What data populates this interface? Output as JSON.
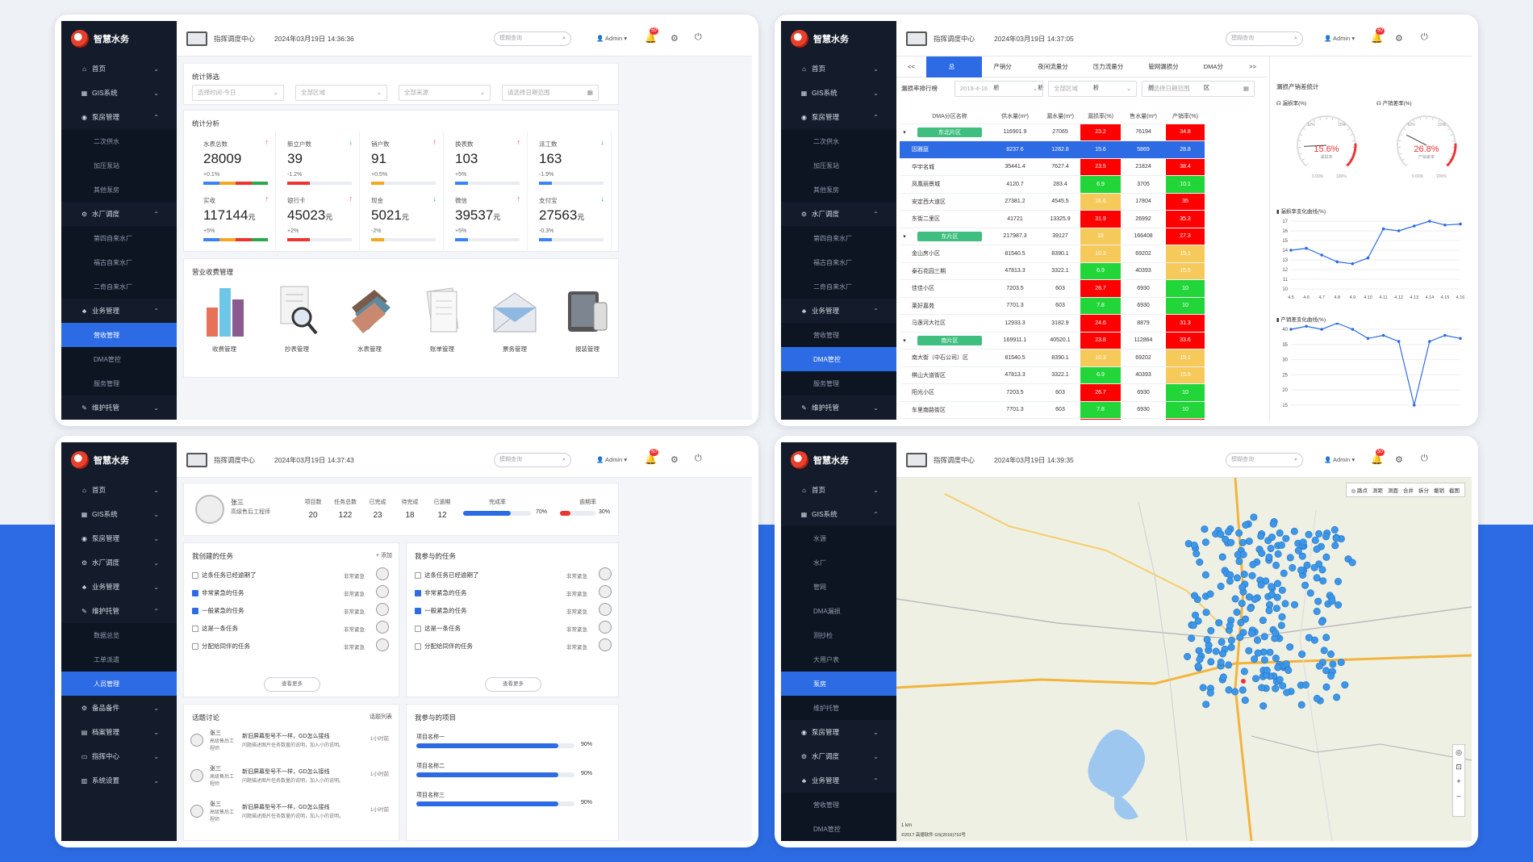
{
  "app": {
    "name": "智慧水务",
    "center": "指挥调度中心",
    "search_placeholder": "模糊查询",
    "user": "Admin",
    "badge": "50"
  },
  "p1": {
    "time": "2024年03月19日 14:36:36",
    "menu": [
      {
        "label": "首页",
        "icon": "home-icon",
        "open": false
      },
      {
        "label": "GIS系统",
        "icon": "grid-icon",
        "open": false
      },
      {
        "label": "泵房管理",
        "icon": "pump-icon",
        "open": true,
        "subs": [
          "二次供水",
          "加压泵站",
          "其他泵房"
        ]
      },
      {
        "label": "水厂调度",
        "icon": "gear-icon",
        "open": true,
        "subs": [
          "第四自来水厂",
          "福古自来水厂",
          "二奇自来水厂"
        ]
      },
      {
        "label": "业务管理",
        "icon": "sitemap-icon",
        "open": true,
        "subs": [
          "营收管理",
          "DMA管控",
          "服务管理"
        ],
        "active": "营收管理"
      },
      {
        "label": "维护托管",
        "icon": "edit-icon",
        "open": false
      }
    ],
    "filter_title": "统计筛选",
    "filters": [
      "选择时间-今日",
      "全部区域",
      "全部来源",
      "请选择日期范围"
    ],
    "analysis_title": "统计分析",
    "stats": [
      {
        "label": "水表总数",
        "value": "28009",
        "unit": "",
        "pct": "+0.1%",
        "dir": "up",
        "fill": 0.75
      },
      {
        "label": "新立户数",
        "value": "39",
        "unit": "",
        "pct": "-1.2%",
        "dir": "dn",
        "fill": 0.35
      },
      {
        "label": "销户数",
        "value": "91",
        "unit": "",
        "pct": "+0.5%",
        "dir": "up",
        "fill": 0.2
      },
      {
        "label": "换表数",
        "value": "103",
        "unit": "",
        "pct": "+5%",
        "dir": "up",
        "fill": 0.2
      },
      {
        "label": "派工数",
        "value": "163",
        "unit": "",
        "pct": "-1.9%",
        "dir": "dn",
        "fill": 0.2
      },
      {
        "label": "实收",
        "value": "117144",
        "unit": "元",
        "pct": "+5%",
        "dir": "up",
        "fill": 0.75
      },
      {
        "label": "银行卡",
        "value": "45023",
        "unit": "元",
        "pct": "+2%",
        "dir": "up",
        "fill": 0.35
      },
      {
        "label": "现金",
        "value": "5021",
        "unit": "元",
        "pct": "-2%",
        "dir": "dn",
        "fill": 0.2
      },
      {
        "label": "微信",
        "value": "39537",
        "unit": "元",
        "pct": "+5%",
        "dir": "up",
        "fill": 0.2
      },
      {
        "label": "支付宝",
        "value": "27563",
        "unit": "元",
        "pct": "-0.3%",
        "dir": "dn",
        "fill": 0.2
      }
    ],
    "revenue_title": "营业收费管理",
    "modules": [
      "收费管理",
      "抄表管理",
      "水表管理",
      "账单管理",
      "票务管理",
      "报装管理"
    ]
  },
  "p2": {
    "time": "2024年03月19日 14:37:05",
    "menu": [
      {
        "label": "首页",
        "icon": "home-icon"
      },
      {
        "label": "GIS系统",
        "icon": "grid-icon"
      },
      {
        "label": "泵房管理",
        "icon": "pump-icon",
        "subs": [
          "二次供水",
          "加压泵站",
          "其他泵房"
        ]
      },
      {
        "label": "水厂调度",
        "icon": "gear-icon",
        "subs": [
          "第四自来水厂",
          "福古自来水厂",
          "二奇自来水厂"
        ]
      },
      {
        "label": "业务管理",
        "icon": "sitemap-icon",
        "subs": [
          "营收管理",
          "DMA管控",
          "服务管理"
        ],
        "active": "DMA管控"
      },
      {
        "label": "维护托管",
        "icon": "edit-icon"
      }
    ],
    "tabs": [
      "<<",
      "总览",
      "产销分析",
      "夜间流量分析",
      "压力流量分析",
      "管网漏损分析",
      "DMA分区",
      ">>"
    ],
    "rank_label": "漏损率排行榜",
    "date": "2019-4-16",
    "area": "全部区域",
    "range": "请选择日期范围",
    "headers": [
      "DMA分区名称",
      "供水量(m³)",
      "漏水量(m³)",
      "漏损率(%)",
      "售水量(m³)",
      "产销率(%)"
    ],
    "rows": [
      {
        "g": true,
        "name": "东北片区",
        "a": "116901.9",
        "b": "27065",
        "c": "23.2",
        "cc": "r",
        "d": "76194",
        "e": "34.8",
        "ec": "r"
      },
      {
        "sel": true,
        "name": "因雅庭",
        "a": "8237.6",
        "b": "1282.8",
        "c": "15.6",
        "cc": "y",
        "d": "5869",
        "e": "28.8",
        "ec": "r"
      },
      {
        "name": "华宇名城",
        "a": "35441.4",
        "b": "7627.4",
        "c": "23.5",
        "cc": "r",
        "d": "21824",
        "e": "38.4",
        "ec": "r"
      },
      {
        "name": "凤凰丽景城",
        "a": "4120.7",
        "b": "283.4",
        "c": "6.9",
        "cc": "g",
        "d": "3705",
        "e": "10.1",
        "ec": "g"
      },
      {
        "name": "安定西大道区",
        "a": "27381.2",
        "b": "4545.5",
        "c": "16.6",
        "cc": "y",
        "d": "17804",
        "e": "35",
        "ec": "r"
      },
      {
        "name": "东街二里区",
        "a": "41721",
        "b": "13325.9",
        "c": "31.9",
        "cc": "r",
        "d": "26992",
        "e": "35.3",
        "ec": "r"
      },
      {
        "g": true,
        "name": "东片区",
        "a": "217987.3",
        "b": "39127",
        "c": "18",
        "cc": "y",
        "d": "166408",
        "e": "27.3",
        "ec": "r"
      },
      {
        "name": "金山房小区",
        "a": "81540.5",
        "b": "8390.1",
        "c": "10.3",
        "cc": "y",
        "d": "69202",
        "e": "15.1",
        "ec": "y"
      },
      {
        "name": "泰石花园三期",
        "a": "47813.3",
        "b": "3322.1",
        "c": "6.9",
        "cc": "g",
        "d": "40393",
        "e": "15.5",
        "ec": "y"
      },
      {
        "name": "佳佳小区",
        "a": "7203.5",
        "b": "603",
        "c": "26.7",
        "cc": "r",
        "d": "6930",
        "e": "10",
        "ec": "g"
      },
      {
        "name": "莱好嘉苑",
        "a": "7701.3",
        "b": "603",
        "c": "7.8",
        "cc": "g",
        "d": "6930",
        "e": "10",
        "ec": "g"
      },
      {
        "name": "马莲河大社区",
        "a": "12933.3",
        "b": "3182.9",
        "c": "24.6",
        "cc": "r",
        "d": "8879",
        "e": "31.3",
        "ec": "r"
      },
      {
        "g": true,
        "name": "南片区",
        "a": "169911.1",
        "b": "40520.1",
        "c": "23.8",
        "cc": "r",
        "d": "112864",
        "e": "33.6",
        "ec": "r"
      },
      {
        "name": "南大街（中石公司）区",
        "a": "81540.5",
        "b": "8390.1",
        "c": "10.3",
        "cc": "y",
        "d": "69202",
        "e": "15.1",
        "ec": "y"
      },
      {
        "name": "棋山大道街区",
        "a": "47813.3",
        "b": "3322.1",
        "c": "6.9",
        "cc": "g",
        "d": "40393",
        "e": "15.5",
        "ec": "y"
      },
      {
        "name": "阳光小区",
        "a": "7203.5",
        "b": "603",
        "c": "26.7",
        "cc": "r",
        "d": "6930",
        "e": "10",
        "ec": "g"
      },
      {
        "name": "车里南路街区",
        "a": "7701.3",
        "b": "603",
        "c": "7.8",
        "cc": "g",
        "d": "6930",
        "e": "10",
        "ec": "g"
      },
      {
        "name": "电视台家属区",
        "a": "12933.3",
        "b": "3182.9",
        "c": "24.6",
        "cc": "r",
        "d": "8879",
        "e": "31.3",
        "ec": "r"
      }
    ],
    "side_title": "漏损产销差统计",
    "g1_label": "漏损率(%)",
    "g1_value": "15.6%",
    "g1_sub": "漏损率",
    "g1_pct": 15.6,
    "g2_label": "产销差率(%)",
    "g2_value": "26.8%",
    "g2_sub": "产销差率",
    "g2_pct": 26.8,
    "gauge_ticks": [
      "0.00%",
      "100%",
      "10%",
      "20%"
    ],
    "chart_data": [
      {
        "type": "line",
        "title": "漏损率变化曲线(%)",
        "categories": [
          "4.5",
          "4.6",
          "4.7",
          "4.8",
          "4.9",
          "4.10",
          "4.11",
          "4.12",
          "4.13",
          "4.14",
          "4.15",
          "4.16"
        ],
        "values": [
          14,
          14.2,
          13.5,
          12.8,
          12.6,
          13.2,
          16.2,
          16,
          16.5,
          17,
          16.6,
          16.7
        ],
        "ylim": [
          10,
          17
        ],
        "yticks": [
          "17",
          "16",
          "15",
          "14",
          "13",
          "12",
          "11",
          "10"
        ]
      },
      {
        "type": "line",
        "title": "产销差变化曲线(%)",
        "categories": [
          "4.5",
          "4.6",
          "4.7",
          "4.8",
          "4.9",
          "4.10",
          "4.11",
          "4.12",
          "4.13",
          "4.14",
          "4.15",
          "4.16"
        ],
        "values": [
          40,
          41,
          40,
          42,
          40,
          37,
          38,
          36,
          15,
          36,
          38,
          37
        ],
        "ylim": [
          15,
          40
        ],
        "yticks": [
          "40",
          "35",
          "30",
          "25",
          "20",
          "15"
        ]
      }
    ]
  },
  "p3": {
    "time": "2024年03月19日 14:37:43",
    "menu": [
      {
        "label": "首页",
        "icon": "home-icon"
      },
      {
        "label": "GIS系统",
        "icon": "grid-icon"
      },
      {
        "label": "泵房管理",
        "icon": "pump-icon"
      },
      {
        "label": "水厂调度",
        "icon": "gear-icon"
      },
      {
        "label": "业务管理",
        "icon": "sitemap-icon"
      },
      {
        "label": "维护托管",
        "icon": "edit-icon",
        "subs": [
          "数据总览",
          "工单派遣",
          "人员管理"
        ],
        "active": "人员管理"
      },
      {
        "label": "备品备件",
        "icon": "cogs-icon"
      },
      {
        "label": "档案管理",
        "icon": "folder-icon"
      },
      {
        "label": "指挥中心",
        "icon": "monitor-icon"
      },
      {
        "label": "系统设置",
        "icon": "calendar-icon"
      }
    ],
    "profile": {
      "name": "张三",
      "role": "高级售后工程师",
      "cols": [
        {
          "l": "项目数",
          "v": "20"
        },
        {
          "l": "任务总数",
          "v": "122"
        },
        {
          "l": "已完成",
          "v": "23"
        },
        {
          "l": "待完成",
          "v": "18"
        },
        {
          "l": "已逾期",
          "v": "12"
        }
      ],
      "done_label": "完成率",
      "done": "70%",
      "done_pct": 0.7,
      "overdue_label": "逾期率",
      "overdue": "30%",
      "overdue_pct": 0.3
    },
    "created_title": "我创建的任务",
    "add": "+ 添加",
    "joined_title": "我参与的任务",
    "tasks": [
      {
        "t": "这条任务已经逾期了",
        "on": false
      },
      {
        "t": "非常紧急的任务",
        "on": true
      },
      {
        "t": "一般紧急的任务",
        "on": true
      },
      {
        "t": "这是一条任务",
        "on": false
      },
      {
        "t": "分配给同伴的任务",
        "on": false
      }
    ],
    "urgent": "非常紧急",
    "more": "查看更多",
    "topic_title": "话题讨论",
    "topic_list": "话题列表",
    "topics": [
      {
        "n": "张三",
        "r": "高级售后工程师",
        "m": "新旧屏幕型号不一样，GD怎么接线",
        "s": "问题描述图片任务数量的说明，加入小的说明。",
        "t": "1小时前"
      },
      {
        "n": "张三",
        "r": "高级售后工程师",
        "m": "新旧屏幕型号不一样，GD怎么接线",
        "s": "问题描述图片任务数量的说明，加入小的说明。",
        "t": "1小时前"
      },
      {
        "n": "张三",
        "r": "高级售后工程师",
        "m": "新旧屏幕型号不一样，GD怎么接线",
        "s": "问题描述图片任务数量的说明，加入小的说明。",
        "t": "1小时前"
      }
    ],
    "proj_title": "我参与的项目",
    "projects": [
      {
        "n": "项目名称一",
        "v": "90%",
        "p": 0.9
      },
      {
        "n": "项目名称二",
        "v": "90%",
        "p": 0.9
      },
      {
        "n": "项目名称三",
        "v": "90%",
        "p": 0.9
      }
    ]
  },
  "p4": {
    "time": "2024年03月19日 14:39:35",
    "menu": [
      {
        "label": "首页",
        "icon": "home-icon"
      },
      {
        "label": "GIS系统",
        "icon": "grid-icon",
        "subs": [
          "水源",
          "水厂",
          "管网",
          "DMA漏损",
          "测抄检",
          "大用户表",
          "泵房",
          "维护托管"
        ],
        "active": "泵房"
      },
      {
        "label": "泵房管理",
        "icon": "pump-icon"
      },
      {
        "label": "水厂调度",
        "icon": "gear-icon"
      },
      {
        "label": "业务管理",
        "icon": "sitemap-icon",
        "subs": [
          "营收管理",
          "DMA管控"
        ]
      }
    ],
    "tools": [
      "◎ 路点",
      "测距",
      "测面",
      "合并",
      "拆分",
      "撤销",
      "截图"
    ],
    "copyright": "©2017 高德软件 GS(2016)710号",
    "scale": "1 km"
  }
}
